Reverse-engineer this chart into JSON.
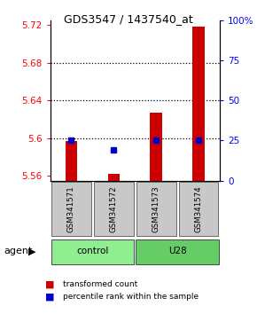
{
  "title": "GDS3547 / 1437540_at",
  "samples": [
    "GSM341571",
    "GSM341572",
    "GSM341573",
    "GSM341574"
  ],
  "red_values": [
    5.597,
    5.562,
    5.627,
    5.718
  ],
  "blue_values": [
    5.598,
    5.588,
    5.598,
    5.598
  ],
  "red_base": 5.555,
  "ylim_left": [
    5.555,
    5.725
  ],
  "ylim_right": [
    0,
    100
  ],
  "yticks_left": [
    5.56,
    5.6,
    5.64,
    5.68,
    5.72
  ],
  "yticks_right": [
    0,
    25,
    50,
    75,
    100
  ],
  "ytick_labels_left": [
    "5.56",
    "5.6",
    "5.64",
    "5.68",
    "5.72"
  ],
  "ytick_labels_right": [
    "0",
    "25",
    "50",
    "75",
    "100%"
  ],
  "grid_lines": [
    5.6,
    5.64,
    5.68
  ],
  "bar_color": "#CC0000",
  "dot_color": "#0000CC",
  "bar_width": 0.28,
  "legend_red": "transformed count",
  "legend_blue": "percentile rank within the sample",
  "background_color": "#ffffff",
  "label_area_bg": "#c8c8c8",
  "group_control_color": "#90EE90",
  "group_u28_color": "#66CC66"
}
